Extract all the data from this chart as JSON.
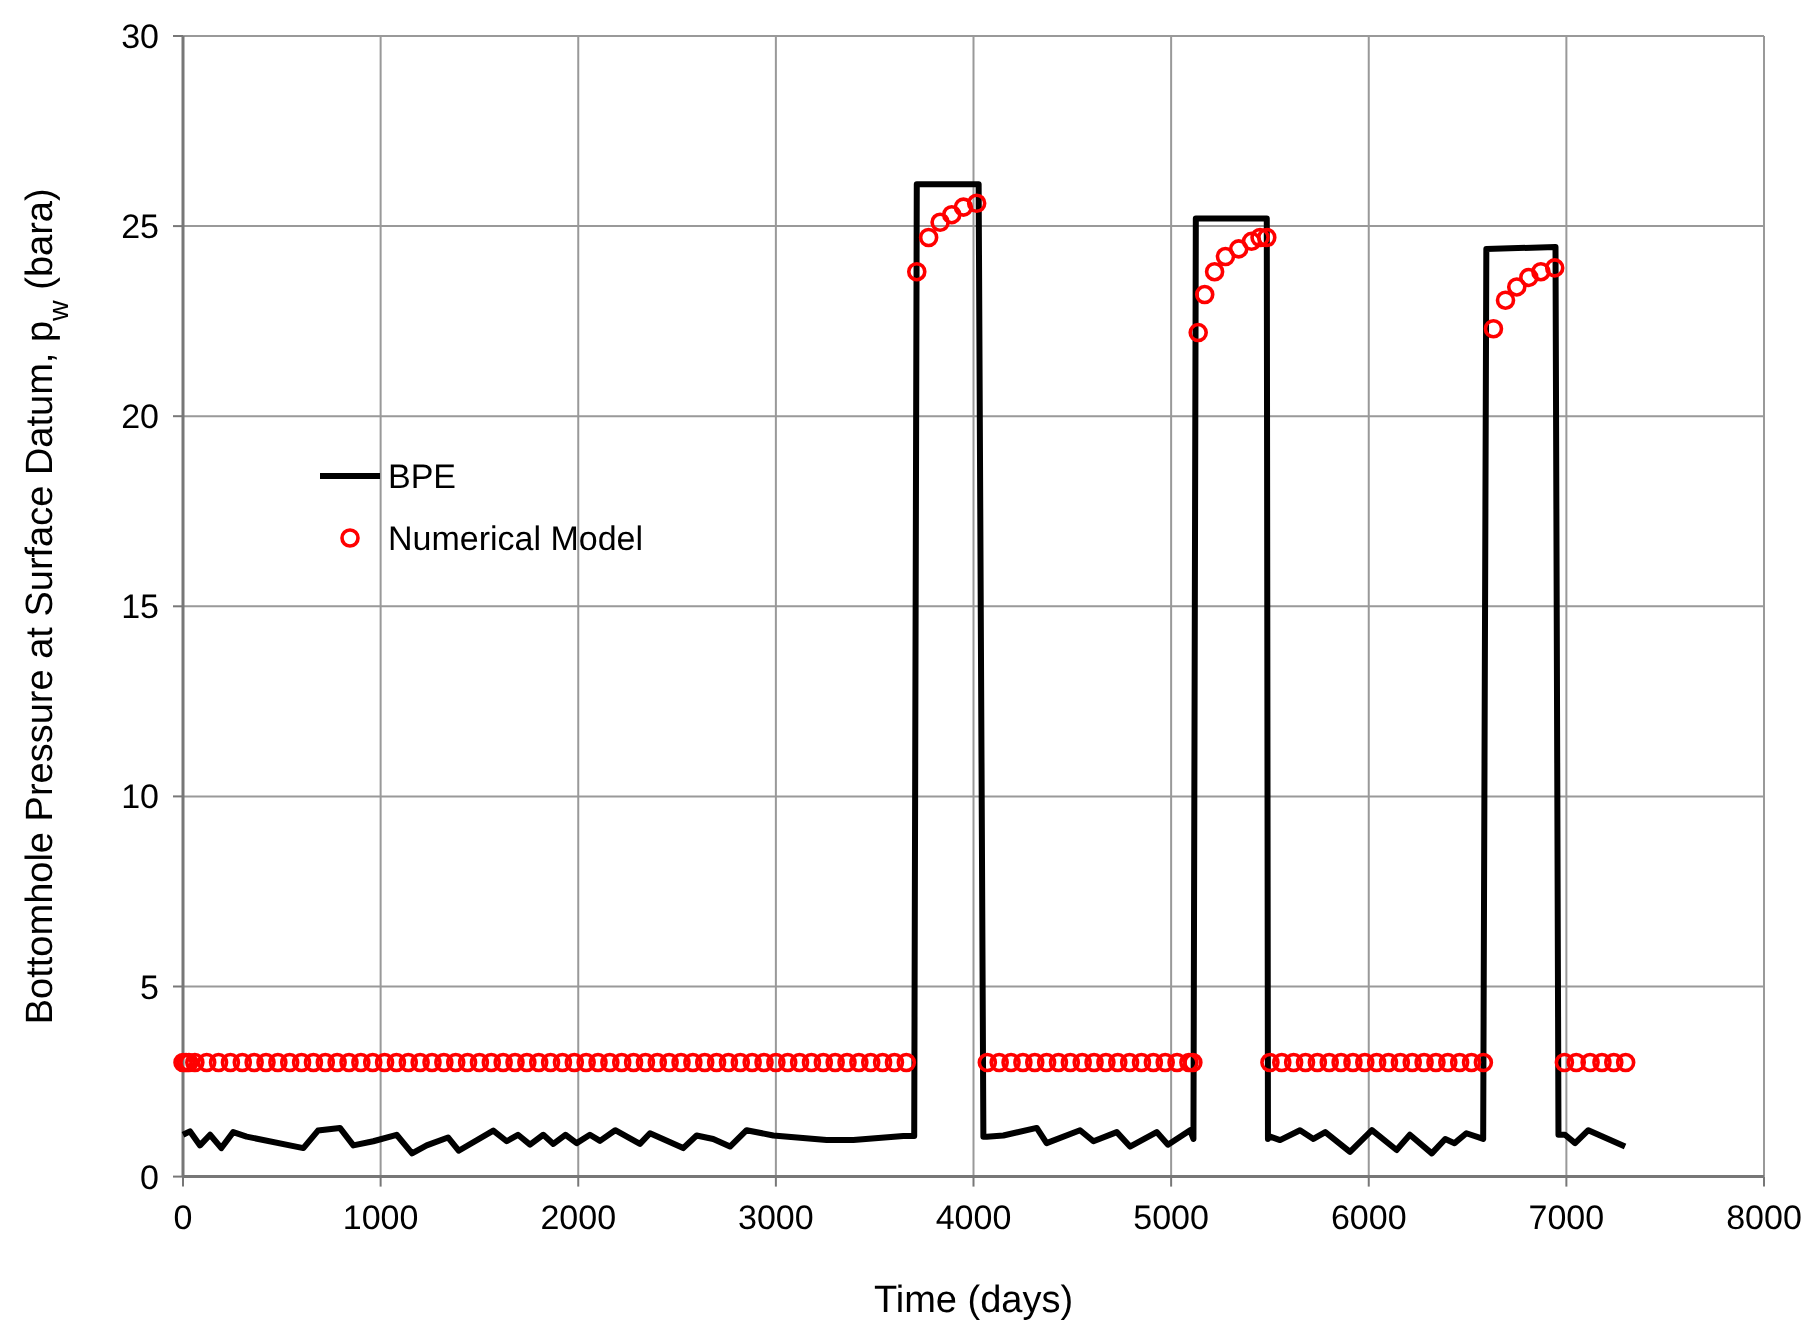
{
  "chart_data": {
    "type": "line",
    "xlabel": "Time (days)",
    "ylabel": "Bottomhole Pressure at Surface Datum, p$_{w}$ (bara)",
    "xlim": [
      0,
      8000
    ],
    "xticks": [
      0,
      1000,
      2000,
      3000,
      4000,
      5000,
      6000,
      7000,
      8000
    ],
    "ylim": [
      0,
      30
    ],
    "yticks": [
      0,
      5,
      10,
      15,
      20,
      25,
      30
    ],
    "grid": true,
    "legend": "left",
    "series": [
      {
        "name": "BPE",
        "color": "#000000",
        "marker": "none",
        "line_style": "solid",
        "x": [
          0,
          35,
          86,
          137,
          194,
          254,
          322,
          609,
          683,
          794,
          862,
          963,
          1081,
          1159,
          1233,
          1341,
          1395,
          1570,
          1638,
          1695,
          1756,
          1823,
          1874,
          1935,
          1992,
          2059,
          2110,
          2187,
          2312,
          2363,
          2531,
          2599,
          2683,
          2768,
          2852,
          2987,
          3257,
          3392,
          3645,
          3700,
          3713,
          4026,
          4050,
          4067,
          4151,
          4320,
          4370,
          4539,
          4607,
          4725,
          4792,
          4927,
          4984,
          5096,
          5113,
          5125,
          5484,
          5490,
          5501,
          5551,
          5652,
          5720,
          5780,
          5905,
          6016,
          6141,
          6208,
          6319,
          6387,
          6434,
          6494,
          6579,
          6595,
          6945,
          6960,
          6993,
          7044,
          7111,
          7297
        ],
        "values": [
          1.1,
          1.19,
          0.82,
          1.1,
          0.75,
          1.17,
          1.05,
          0.75,
          1.21,
          1.28,
          0.82,
          0.93,
          1.1,
          0.61,
          0.82,
          1.03,
          0.68,
          1.21,
          0.93,
          1.1,
          0.84,
          1.1,
          0.86,
          1.1,
          0.88,
          1.1,
          0.94,
          1.22,
          0.86,
          1.14,
          0.75,
          1.08,
          0.99,
          0.79,
          1.22,
          1.08,
          0.96,
          0.96,
          1.07,
          1.07,
          26.1,
          26.1,
          1.05,
          1.05,
          1.08,
          1.28,
          0.88,
          1.22,
          0.93,
          1.17,
          0.79,
          1.17,
          0.84,
          1.22,
          0.99,
          25.2,
          25.2,
          0.99,
          1.05,
          0.96,
          1.22,
          0.99,
          1.17,
          0.65,
          1.22,
          0.7,
          1.1,
          0.61,
          0.99,
          0.88,
          1.14,
          0.99,
          24.4,
          24.45,
          1.1,
          1.1,
          0.88,
          1.22,
          0.79
        ]
      },
      {
        "name": "Numerical Model",
        "type": "scatter",
        "color": "#ff0000",
        "marker": "circle",
        "x": [
          0,
          15,
          30,
          60,
          120,
          180,
          240,
          300,
          360,
          420,
          480,
          540,
          600,
          660,
          720,
          780,
          840,
          900,
          960,
          1020,
          1080,
          1140,
          1200,
          1260,
          1320,
          1380,
          1440,
          1500,
          1560,
          1620,
          1680,
          1740,
          1800,
          1860,
          1920,
          1980,
          2040,
          2100,
          2160,
          2220,
          2280,
          2340,
          2400,
          2460,
          2520,
          2580,
          2640,
          2700,
          2760,
          2820,
          2880,
          2940,
          3000,
          3060,
          3120,
          3180,
          3240,
          3300,
          3360,
          3420,
          3480,
          3540,
          3600,
          3660,
          3713,
          3773,
          3831,
          3890,
          3949,
          4016,
          4070,
          4130,
          4190,
          4250,
          4310,
          4370,
          4430,
          4490,
          4550,
          4610,
          4670,
          4730,
          4790,
          4850,
          4910,
          4970,
          5030,
          5090,
          5110,
          5137,
          5170,
          5220,
          5275,
          5342,
          5407,
          5450,
          5484,
          5500,
          5560,
          5620,
          5680,
          5740,
          5800,
          5860,
          5920,
          5980,
          6040,
          6100,
          6160,
          6220,
          6280,
          6340,
          6400,
          6460,
          6520,
          6580,
          6631,
          6692,
          6749,
          6810,
          6871,
          6941,
          6990,
          7050,
          7120,
          7180,
          7240,
          7300
        ],
        "values": [
          3,
          3,
          3,
          3,
          3,
          3,
          3,
          3,
          3,
          3,
          3,
          3,
          3,
          3,
          3,
          3,
          3,
          3,
          3,
          3,
          3,
          3,
          3,
          3,
          3,
          3,
          3,
          3,
          3,
          3,
          3,
          3,
          3,
          3,
          3,
          3,
          3,
          3,
          3,
          3,
          3,
          3,
          3,
          3,
          3,
          3,
          3,
          3,
          3,
          3,
          3,
          3,
          3,
          3,
          3,
          3,
          3,
          3,
          3,
          3,
          3,
          3,
          3,
          3,
          23.8,
          24.7,
          25.1,
          25.3,
          25.5,
          25.6,
          3,
          3,
          3,
          3,
          3,
          3,
          3,
          3,
          3,
          3,
          3,
          3,
          3,
          3,
          3,
          3,
          3,
          3,
          3,
          22.2,
          23.2,
          23.8,
          24.2,
          24.4,
          24.6,
          24.7,
          24.7,
          3,
          3,
          3,
          3,
          3,
          3,
          3,
          3,
          3,
          3,
          3,
          3,
          3,
          3,
          3,
          3,
          3,
          3,
          3,
          22.3,
          23.05,
          23.4,
          23.65,
          23.8,
          23.9,
          3,
          3,
          3,
          3,
          3,
          3
        ]
      }
    ]
  }
}
